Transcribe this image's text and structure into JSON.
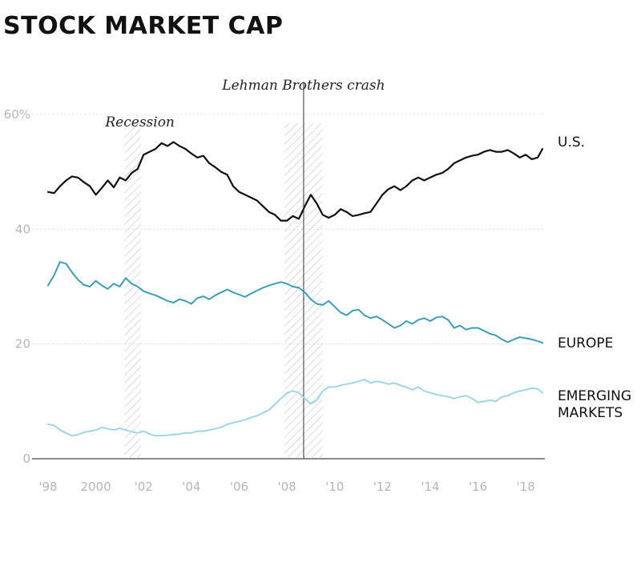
{
  "chart_data": {
    "type": "line",
    "title": "STOCK MARKET CAP",
    "xlabel": "",
    "ylabel": "",
    "xlim": [
      1998,
      2018.8
    ],
    "ylim": [
      0,
      60
    ],
    "grid": true,
    "y_ticks": [
      {
        "value": 60,
        "label": "60%"
      },
      {
        "value": 40,
        "label": "40"
      },
      {
        "value": 20,
        "label": "20"
      },
      {
        "value": 0,
        "label": "0"
      }
    ],
    "x_ticks": [
      {
        "value": 1998,
        "label": "'98"
      },
      {
        "value": 2000,
        "label": "2000"
      },
      {
        "value": 2002,
        "label": "'02"
      },
      {
        "value": 2004,
        "label": "'04"
      },
      {
        "value": 2006,
        "label": "'06"
      },
      {
        "value": 2008,
        "label": "'08"
      },
      {
        "value": 2010,
        "label": "'10"
      },
      {
        "value": 2012,
        "label": "'12"
      },
      {
        "value": 2014,
        "label": "'14"
      },
      {
        "value": 2016,
        "label": "'16"
      },
      {
        "value": 2018,
        "label": "'18"
      }
    ],
    "shaded_periods": [
      {
        "label": "Recession",
        "start": 2001.2,
        "end": 2001.9
      },
      {
        "label": "",
        "start": 2007.9,
        "end": 2009.5
      }
    ],
    "events": [
      {
        "label": "Lehman Brothers crash",
        "x": 2008.7
      }
    ],
    "series": [
      {
        "name": "U.S.",
        "color": "#111111",
        "x": [
          1998.0,
          1998.25,
          1998.5,
          1998.75,
          1999.0,
          1999.25,
          1999.5,
          1999.75,
          2000.0,
          2000.25,
          2000.5,
          2000.75,
          2001.0,
          2001.25,
          2001.5,
          2001.75,
          2002.0,
          2002.25,
          2002.5,
          2002.75,
          2003.0,
          2003.25,
          2003.5,
          2003.75,
          2004.0,
          2004.25,
          2004.5,
          2004.75,
          2005.0,
          2005.25,
          2005.5,
          2005.75,
          2006.0,
          2006.25,
          2006.5,
          2006.75,
          2007.0,
          2007.25,
          2007.5,
          2007.75,
          2008.0,
          2008.25,
          2008.5,
          2008.75,
          2009.0,
          2009.25,
          2009.5,
          2009.75,
          2010.0,
          2010.25,
          2010.5,
          2010.75,
          2011.0,
          2011.25,
          2011.5,
          2011.75,
          2012.0,
          2012.25,
          2012.5,
          2012.75,
          2013.0,
          2013.25,
          2013.5,
          2013.75,
          2014.0,
          2014.25,
          2014.5,
          2014.75,
          2015.0,
          2015.25,
          2015.5,
          2015.75,
          2016.0,
          2016.25,
          2016.5,
          2016.75,
          2017.0,
          2017.25,
          2017.5,
          2017.75,
          2018.0,
          2018.25,
          2018.5,
          2018.7
        ],
        "values": [
          46.5,
          46.3,
          47.5,
          48.5,
          49.2,
          49.0,
          48.2,
          47.5,
          46.0,
          47.2,
          48.5,
          47.3,
          49.0,
          48.5,
          49.8,
          50.5,
          53.0,
          53.5,
          54.0,
          55.0,
          54.5,
          55.2,
          54.5,
          54.0,
          53.2,
          52.5,
          52.8,
          51.5,
          50.8,
          50.0,
          49.5,
          47.5,
          46.5,
          46.0,
          45.5,
          45.0,
          44.0,
          43.0,
          42.5,
          41.5,
          41.5,
          42.3,
          41.8,
          44.0,
          46.0,
          44.5,
          42.5,
          42.0,
          42.5,
          43.5,
          43.0,
          42.3,
          42.5,
          42.8,
          43.0,
          44.5,
          46.0,
          47.0,
          47.5,
          46.8,
          47.5,
          48.5,
          49.0,
          48.5,
          49.0,
          49.5,
          49.8,
          50.5,
          51.5,
          52.0,
          52.5,
          52.8,
          53.0,
          53.5,
          53.8,
          53.5,
          53.5,
          53.8,
          53.2,
          52.5,
          53.0,
          52.2,
          52.5,
          54.0
        ]
      },
      {
        "name": "EUROPE",
        "color": "#3e9db3",
        "x": [
          1998.0,
          1998.25,
          1998.5,
          1998.75,
          1999.0,
          1999.25,
          1999.5,
          1999.75,
          2000.0,
          2000.25,
          2000.5,
          2000.75,
          2001.0,
          2001.25,
          2001.5,
          2001.75,
          2002.0,
          2002.25,
          2002.5,
          2002.75,
          2003.0,
          2003.25,
          2003.5,
          2003.75,
          2004.0,
          2004.25,
          2004.5,
          2004.75,
          2005.0,
          2005.25,
          2005.5,
          2005.75,
          2006.0,
          2006.25,
          2006.5,
          2006.75,
          2007.0,
          2007.25,
          2007.5,
          2007.75,
          2008.0,
          2008.25,
          2008.5,
          2008.75,
          2009.0,
          2009.25,
          2009.5,
          2009.75,
          2010.0,
          2010.25,
          2010.5,
          2010.75,
          2011.0,
          2011.25,
          2011.5,
          2011.75,
          2012.0,
          2012.25,
          2012.5,
          2012.75,
          2013.0,
          2013.25,
          2013.5,
          2013.75,
          2014.0,
          2014.25,
          2014.5,
          2014.75,
          2015.0,
          2015.25,
          2015.5,
          2015.75,
          2016.0,
          2016.25,
          2016.5,
          2016.75,
          2017.0,
          2017.25,
          2017.5,
          2017.75,
          2018.0,
          2018.25,
          2018.5,
          2018.7
        ],
        "values": [
          30.2,
          32.0,
          34.3,
          34.0,
          32.5,
          31.2,
          30.3,
          30.0,
          31.0,
          30.2,
          29.6,
          30.5,
          30.0,
          31.5,
          30.5,
          30.0,
          29.2,
          28.8,
          28.5,
          28.0,
          27.5,
          27.2,
          27.8,
          27.5,
          27.0,
          28.0,
          28.3,
          27.8,
          28.5,
          29.0,
          29.5,
          29.0,
          28.6,
          28.2,
          28.8,
          29.3,
          29.8,
          30.2,
          30.5,
          30.8,
          30.5,
          30.0,
          29.8,
          29.0,
          27.8,
          27.0,
          26.8,
          27.5,
          26.5,
          25.5,
          25.0,
          25.8,
          26.0,
          25.0,
          24.5,
          24.8,
          24.2,
          23.5,
          22.8,
          23.2,
          24.0,
          23.5,
          24.2,
          24.5,
          24.0,
          24.6,
          24.8,
          24.2,
          22.8,
          23.2,
          22.5,
          22.8,
          22.8,
          22.3,
          21.8,
          21.5,
          20.8,
          20.3,
          20.8,
          21.2,
          21.0,
          20.8,
          20.5,
          20.2
        ]
      },
      {
        "name": "EMERGING MARKETS",
        "color": "#9fd6e6",
        "x": [
          1998.0,
          1998.25,
          1998.5,
          1998.75,
          1999.0,
          1999.25,
          1999.5,
          1999.75,
          2000.0,
          2000.25,
          2000.5,
          2000.75,
          2001.0,
          2001.25,
          2001.5,
          2001.75,
          2002.0,
          2002.25,
          2002.5,
          2002.75,
          2003.0,
          2003.25,
          2003.5,
          2003.75,
          2004.0,
          2004.25,
          2004.5,
          2004.75,
          2005.0,
          2005.25,
          2005.5,
          2005.75,
          2006.0,
          2006.25,
          2006.5,
          2006.75,
          2007.0,
          2007.25,
          2007.5,
          2007.75,
          2008.0,
          2008.25,
          2008.5,
          2008.75,
          2009.0,
          2009.25,
          2009.5,
          2009.75,
          2010.0,
          2010.25,
          2010.5,
          2010.75,
          2011.0,
          2011.25,
          2011.5,
          2011.75,
          2012.0,
          2012.25,
          2012.5,
          2012.75,
          2013.0,
          2013.25,
          2013.5,
          2013.75,
          2014.0,
          2014.25,
          2014.5,
          2014.75,
          2015.0,
          2015.25,
          2015.5,
          2015.75,
          2016.0,
          2016.25,
          2016.5,
          2016.75,
          2017.0,
          2017.25,
          2017.5,
          2017.75,
          2018.0,
          2018.25,
          2018.5,
          2018.7
        ],
        "values": [
          6.0,
          5.8,
          5.0,
          4.5,
          4.0,
          4.2,
          4.6,
          4.8,
          5.0,
          5.5,
          5.2,
          5.0,
          5.3,
          5.0,
          4.7,
          4.5,
          4.8,
          4.3,
          4.0,
          4.0,
          4.1,
          4.2,
          4.3,
          4.5,
          4.5,
          4.8,
          4.8,
          5.0,
          5.2,
          5.5,
          6.0,
          6.3,
          6.5,
          6.8,
          7.2,
          7.5,
          8.0,
          8.5,
          9.5,
          10.5,
          11.5,
          11.8,
          11.5,
          10.5,
          9.6,
          10.2,
          11.8,
          12.5,
          12.5,
          12.8,
          13.0,
          13.2,
          13.5,
          13.8,
          13.2,
          13.5,
          13.3,
          13.0,
          13.2,
          12.8,
          12.5,
          12.0,
          12.5,
          11.8,
          11.5,
          11.2,
          11.0,
          10.8,
          10.5,
          10.8,
          11.0,
          10.5,
          9.8,
          10.0,
          10.2,
          10.0,
          10.8,
          11.0,
          11.5,
          11.8,
          12.0,
          12.3,
          12.2,
          11.5
        ]
      }
    ]
  }
}
